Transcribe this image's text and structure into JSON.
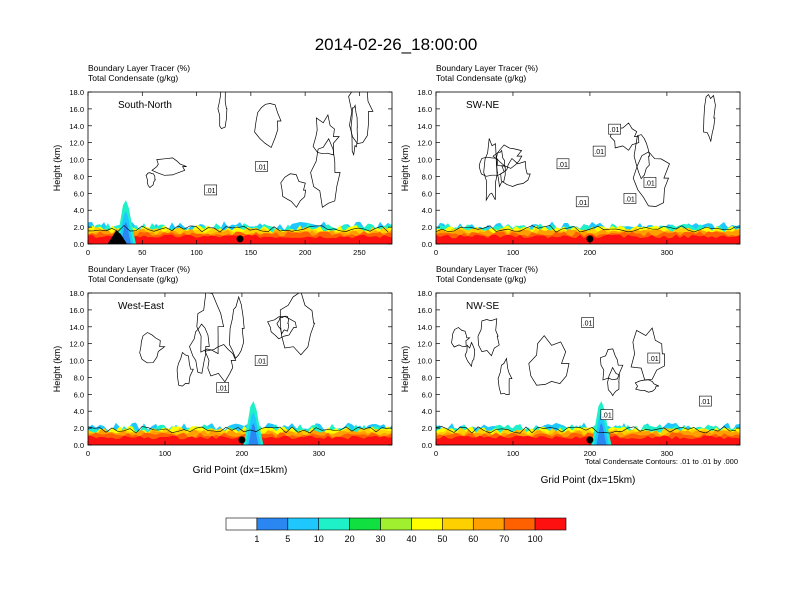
{
  "figure": {
    "main_title": "2014-02-26_18:00:00",
    "footnote": "Total Condensate Contours: .01 to .01 by .000"
  },
  "colorbar": {
    "labels": [
      "1",
      "5",
      "10",
      "20",
      "30",
      "40",
      "50",
      "60",
      "70",
      "100"
    ],
    "colors": [
      "#ffffff",
      "#2a86f0",
      "#1ec8ff",
      "#1ef0c8",
      "#10e040",
      "#a0f030",
      "#ffff00",
      "#ffd000",
      "#ffa000",
      "#ff6000",
      "#ff1010"
    ]
  },
  "chart_data": [
    {
      "type": "heatmap",
      "panel": "South-North",
      "subtitle_lines": [
        "Boundary Layer Tracer   (%)",
        "Total Condensate   (g/kg)"
      ],
      "ylabel": "Height (km)",
      "xlabel": "",
      "ylim": [
        0,
        18
      ],
      "yticks": [
        "0.0",
        "2.0",
        "4.0",
        "6.0",
        "8.0",
        "10.0",
        "12.0",
        "14.0",
        "16.0",
        "18.0"
      ],
      "xlim": [
        0,
        280
      ],
      "xticks": [
        0,
        50,
        100,
        150,
        200,
        250
      ],
      "marker_x": 140,
      "contour_labels": [
        {
          "text": ".01",
          "x": 113,
          "y": 6.4
        },
        {
          "text": ".01",
          "x": 160,
          "y": 9.2
        }
      ],
      "tracer_plume_x": 35
    },
    {
      "type": "heatmap",
      "panel": "SW-NE",
      "subtitle_lines": [
        "Boundary Layer Tracer   (%)",
        "Total Condensate   (g/kg)"
      ],
      "ylabel": "Height (km)",
      "xlabel": "",
      "ylim": [
        0,
        18
      ],
      "yticks": [
        "0.0",
        "2.0",
        "4.0",
        "6.0",
        "8.0",
        "10.0",
        "12.0",
        "14.0",
        "16.0",
        "18.0"
      ],
      "xlim": [
        0,
        395
      ],
      "xticks": [
        0,
        100,
        200,
        300
      ],
      "marker_x": 200,
      "contour_labels": [
        {
          "text": ".01",
          "x": 212,
          "y": 11.0
        },
        {
          "text": ".01",
          "x": 165,
          "y": 9.5
        },
        {
          "text": ".01",
          "x": 232,
          "y": 13.6
        },
        {
          "text": ".01",
          "x": 278,
          "y": 7.3
        },
        {
          "text": ".01",
          "x": 252,
          "y": 5.4
        },
        {
          "text": ".01",
          "x": 190,
          "y": 5.0
        }
      ],
      "tracer_plume_x": 0
    },
    {
      "type": "heatmap",
      "panel": "West-East",
      "subtitle_lines": [
        "Boundary Layer Tracer   (%)",
        "Total Condensate   (g/kg)"
      ],
      "ylabel": "Height (km)",
      "xlabel": "Grid Point (dx=15km)",
      "ylim": [
        0,
        18
      ],
      "yticks": [
        "0.0",
        "2.0",
        "4.0",
        "6.0",
        "8.0",
        "10.0",
        "12.0",
        "14.0",
        "16.0",
        "18.0"
      ],
      "xlim": [
        0,
        395
      ],
      "xticks": [
        0,
        100,
        200,
        300
      ],
      "marker_x": 200,
      "contour_labels": [
        {
          "text": ".01",
          "x": 225,
          "y": 10.0
        },
        {
          "text": ".01",
          "x": 175,
          "y": 6.8
        }
      ],
      "tracer_plume_x": 215
    },
    {
      "type": "heatmap",
      "panel": "NW-SE",
      "subtitle_lines": [
        "Boundary Layer Tracer   (%)",
        "Total Condensate   (g/kg)"
      ],
      "ylabel": "Height (km)",
      "xlabel": "Grid Point (dx=15km)",
      "ylim": [
        0,
        18
      ],
      "yticks": [
        "0.0",
        "2.0",
        "4.0",
        "6.0",
        "8.0",
        "10.0",
        "12.0",
        "14.0",
        "16.0",
        "18.0"
      ],
      "xlim": [
        0,
        395
      ],
      "xticks": [
        0,
        100,
        200,
        300
      ],
      "marker_x": 200,
      "contour_labels": [
        {
          "text": ".01",
          "x": 197,
          "y": 14.5
        },
        {
          "text": ".01",
          "x": 283,
          "y": 10.3
        },
        {
          "text": ".01",
          "x": 350,
          "y": 5.2
        },
        {
          "text": ".01",
          "x": 222,
          "y": 3.6
        }
      ],
      "tracer_plume_x": 215
    }
  ]
}
